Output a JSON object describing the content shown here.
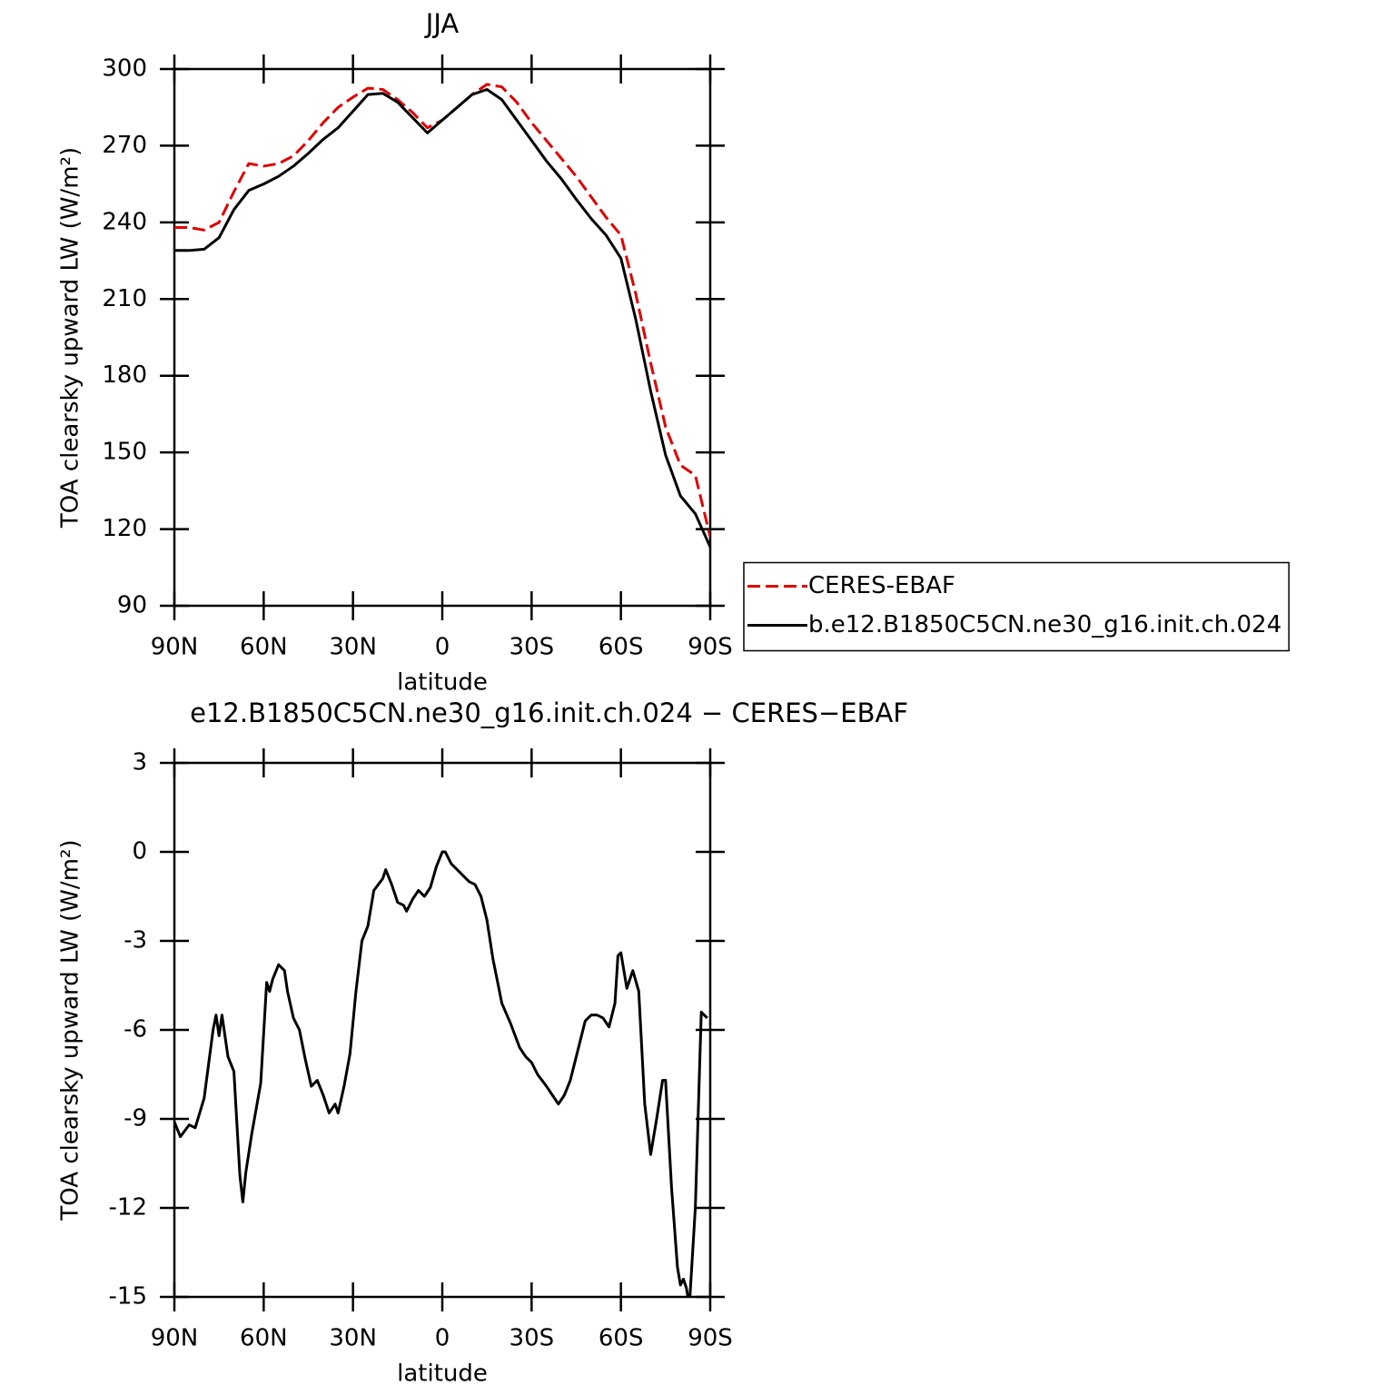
{
  "chart_data": [
    {
      "type": "line",
      "title": "JJA",
      "x_label": "latitude",
      "y_label": "TOA clearsky upward LW (W/m²)",
      "x": [
        90,
        85,
        80,
        75,
        70,
        65,
        60,
        55,
        50,
        45,
        40,
        35,
        30,
        25,
        20,
        15,
        10,
        5,
        0,
        -5,
        -10,
        -15,
        -20,
        -25,
        -30,
        -35,
        -40,
        -45,
        -50,
        -55,
        -60,
        -65,
        -70,
        -75,
        -80,
        -85,
        -90
      ],
      "series": [
        {
          "name": "CERES-EBAF",
          "color": "#e00000",
          "line_style": "dashed",
          "values": [
            238,
            238,
            237,
            240,
            252,
            263,
            262,
            263,
            266,
            272,
            279,
            285,
            289,
            292.5,
            292,
            288,
            283,
            277,
            280,
            285,
            290,
            294,
            293,
            287,
            279,
            272,
            265,
            258,
            250,
            242,
            235,
            212,
            185,
            160,
            145,
            141,
            117
          ]
        },
        {
          "name": "b.e12.B1850C5CN.ne30_g16.init.ch.024",
          "color": "#000000",
          "line_style": "solid",
          "values": [
            229,
            229,
            229.5,
            234,
            245,
            252.5,
            255,
            258,
            262,
            267,
            272.5,
            277,
            283.5,
            290,
            290.5,
            287,
            281,
            275,
            280,
            285,
            290,
            292,
            288,
            280,
            272,
            264,
            257,
            249,
            241.5,
            235,
            226,
            202,
            174,
            149,
            133,
            126,
            113
          ]
        }
      ],
      "xlim": [
        90,
        -90
      ],
      "xticks": [
        {
          "value": 90,
          "label": "90N"
        },
        {
          "value": 60,
          "label": "60N"
        },
        {
          "value": 30,
          "label": "30N"
        },
        0,
        {
          "value": -30,
          "label": "30S"
        },
        {
          "value": -60,
          "label": "60S"
        },
        {
          "value": -90,
          "label": "90S"
        }
      ],
      "ylim": [
        90,
        300
      ],
      "yticks": [
        90,
        120,
        150,
        180,
        210,
        240,
        270,
        300
      ],
      "legend": "right"
    },
    {
      "type": "line",
      "title": "e12.B1850C5CN.ne30_g16.init.ch.024 − CERES−EBAF",
      "x_label": "latitude",
      "y_label": "TOA clearsky upward LW (W/m²)",
      "x": [
        90,
        88,
        85,
        83,
        80,
        77,
        76,
        75,
        74,
        72,
        70,
        68,
        67,
        66,
        64,
        61,
        59,
        58,
        57,
        55,
        53,
        52,
        50,
        48,
        46,
        44,
        42,
        40,
        38,
        36,
        35,
        33,
        31,
        29,
        27,
        25,
        23,
        20,
        19,
        17,
        15,
        13,
        12,
        10,
        8,
        6,
        4,
        2,
        0,
        -1,
        -3,
        -6,
        -9,
        -11,
        -13,
        -15,
        -17,
        -20,
        -23,
        -26,
        -28,
        -30,
        -32,
        -35,
        -37,
        -39,
        -41,
        -43,
        -46,
        -48,
        -50,
        -52,
        -54,
        -56,
        -58,
        -59,
        -60,
        -62,
        -64,
        -66,
        -68,
        -70,
        -72,
        -74,
        -75,
        -77,
        -79,
        -80,
        -81,
        -82,
        -83,
        -85,
        -87,
        -89
      ],
      "color": "#000000",
      "values": [
        -9.1,
        -9.6,
        -9.2,
        -9.3,
        -8.3,
        -6.0,
        -5.5,
        -6.2,
        -5.5,
        -6.9,
        -7.4,
        -10.9,
        -11.8,
        -10.8,
        -9.5,
        -7.8,
        -4.4,
        -4.7,
        -4.3,
        -3.8,
        -4.0,
        -4.7,
        -5.6,
        -6.0,
        -7.0,
        -7.9,
        -7.7,
        -8.2,
        -8.8,
        -8.5,
        -8.8,
        -7.9,
        -6.8,
        -4.7,
        -3.0,
        -2.5,
        -1.3,
        -0.9,
        -0.6,
        -1.1,
        -1.7,
        -1.8,
        -2.0,
        -1.6,
        -1.3,
        -1.5,
        -1.2,
        -0.5,
        0.0,
        0.0,
        -0.4,
        -0.7,
        -1.0,
        -1.1,
        -1.5,
        -2.3,
        -3.6,
        -5.1,
        -5.8,
        -6.6,
        -6.9,
        -7.1,
        -7.5,
        -7.9,
        -8.2,
        -8.5,
        -8.2,
        -7.7,
        -6.5,
        -5.7,
        -5.5,
        -5.5,
        -5.6,
        -5.9,
        -5.1,
        -3.5,
        -3.4,
        -4.6,
        -4.0,
        -4.7,
        -8.5,
        -10.2,
        -9.0,
        -7.7,
        -7.7,
        -11.3,
        -14.0,
        -14.6,
        -14.4,
        -14.7,
        -15.3,
        -12.0,
        -5.4,
        -5.6
      ],
      "xlim": [
        90,
        -90
      ],
      "xticks": [
        {
          "value": 90,
          "label": "90N"
        },
        {
          "value": 60,
          "label": "60N"
        },
        {
          "value": 30,
          "label": "30N"
        },
        0,
        {
          "value": -30,
          "label": "30S"
        },
        {
          "value": -60,
          "label": "60S"
        },
        {
          "value": -90,
          "label": "90S"
        }
      ],
      "ylim": [
        -15,
        3
      ],
      "yticks": [
        -15,
        -12,
        -9,
        -6,
        -3,
        0,
        3
      ]
    }
  ]
}
